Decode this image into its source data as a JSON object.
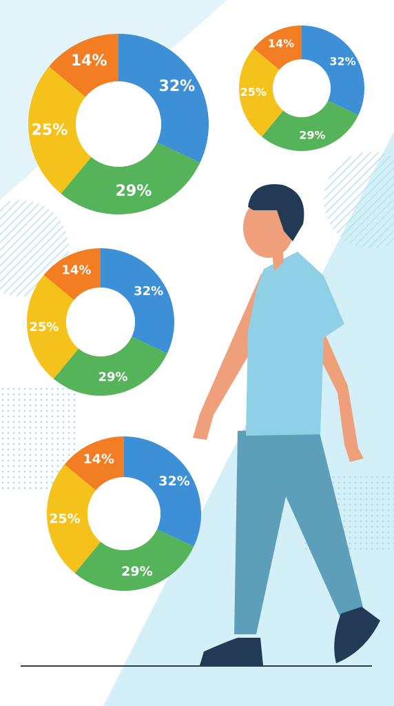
{
  "chart_data": [
    {
      "type": "donut",
      "values": [
        32,
        29,
        25,
        14
      ],
      "value_labels": [
        "32%",
        "29%",
        "25%",
        "14%"
      ],
      "colors": [
        "#3d8fd6",
        "#55b359",
        "#f5c21b",
        "#f27d23"
      ]
    },
    {
      "type": "donut",
      "values": [
        32,
        29,
        25,
        14
      ],
      "value_labels": [
        "32%",
        "29%",
        "25%",
        "14%"
      ],
      "colors": [
        "#3d8fd6",
        "#55b359",
        "#f5c21b",
        "#f27d23"
      ]
    },
    {
      "type": "donut",
      "values": [
        32,
        29,
        25,
        14
      ],
      "value_labels": [
        "32%",
        "29%",
        "25%",
        "14%"
      ],
      "colors": [
        "#3d8fd6",
        "#55b359",
        "#f5c21b",
        "#f27d23"
      ]
    },
    {
      "type": "donut",
      "values": [
        32,
        29,
        25,
        14
      ],
      "value_labels": [
        "32%",
        "29%",
        "25%",
        "14%"
      ],
      "colors": [
        "#3d8fd6",
        "#55b359",
        "#f5c21b",
        "#f27d23"
      ]
    }
  ]
}
